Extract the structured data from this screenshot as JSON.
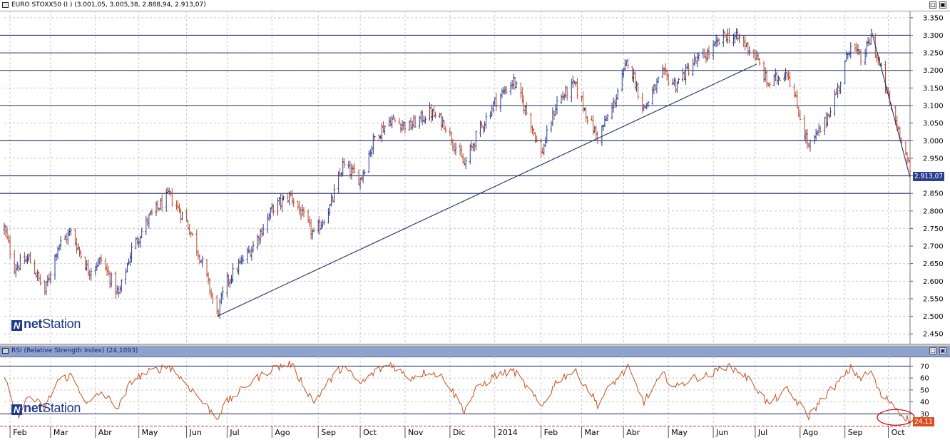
{
  "main_panel": {
    "title": "EURO STOXX50 (I ) (3.001,05, 3.005,38, 2.888,94, 2.913,07)",
    "last_value_label": "2.913,07",
    "logo": {
      "brand_bold": "net",
      "brand_rest": "Station"
    }
  },
  "rsi_panel": {
    "title": "RSI (Relative Strength Index) (24,1093)",
    "last_value_label": "24,11",
    "logo": {
      "brand_bold": "net",
      "brand_rest": "Station"
    }
  },
  "window_buttons": {
    "restore": "□",
    "maximize": "▣"
  },
  "colors": {
    "up_bar": "#2b3a8c",
    "down_bar": "#b8482a",
    "rsi_line": "#c8501e",
    "price_badge": "#2a3f8f",
    "rsi_badge": "#d8501e",
    "circle": "#d00000"
  },
  "chart_data": [
    {
      "type": "ohlc",
      "series_name": "EURO STOXX50",
      "last": 2913.07,
      "y_ticks": [
        "3.350",
        "3.300",
        "3.250",
        "3.200",
        "3.150",
        "3.100",
        "3.050",
        "3.000",
        "2.950",
        "2.900",
        "2.850",
        "2.800",
        "2.750",
        "2.700",
        "2.650",
        "2.600",
        "2.550",
        "2.500",
        "2.450"
      ],
      "ylim": [
        2420,
        3370
      ],
      "horizontal_levels": [
        3300,
        3250,
        3200,
        3100,
        3000,
        2900,
        2850
      ],
      "trendlines": [
        {
          "from": [
            "2013-06-24",
            2500
          ],
          "to": [
            "2014-07-02",
            3218
          ]
        },
        {
          "from": [
            "2014-09-19",
            3318
          ],
          "to": [
            "2014-10-16",
            2895
          ]
        }
      ],
      "anchors": [
        [
          "2013-01-28",
          2750
        ],
        [
          "2013-02-04",
          2640
        ],
        [
          "2013-02-14",
          2665
        ],
        [
          "2013-02-25",
          2570
        ],
        [
          "2013-03-06",
          2700
        ],
        [
          "2013-03-15",
          2740
        ],
        [
          "2013-03-27",
          2630
        ],
        [
          "2013-04-05",
          2660
        ],
        [
          "2013-04-17",
          2560
        ],
        [
          "2013-04-26",
          2690
        ],
        [
          "2013-05-08",
          2780
        ],
        [
          "2013-05-22",
          2845
        ],
        [
          "2013-06-03",
          2770
        ],
        [
          "2013-06-14",
          2650
        ],
        [
          "2013-06-24",
          2505
        ],
        [
          "2013-07-01",
          2600
        ],
        [
          "2013-07-19",
          2700
        ],
        [
          "2013-08-02",
          2810
        ],
        [
          "2013-08-14",
          2845
        ],
        [
          "2013-08-30",
          2730
        ],
        [
          "2013-09-10",
          2810
        ],
        [
          "2013-09-19",
          2930
        ],
        [
          "2013-10-01",
          2890
        ],
        [
          "2013-10-11",
          3010
        ],
        [
          "2013-10-22",
          3060
        ],
        [
          "2013-11-04",
          3040
        ],
        [
          "2013-11-18",
          3080
        ],
        [
          "2013-11-28",
          3050
        ],
        [
          "2013-12-12",
          2930
        ],
        [
          "2013-12-20",
          3010
        ],
        [
          "2014-01-02",
          3110
        ],
        [
          "2014-01-15",
          3170
        ],
        [
          "2014-01-27",
          3050
        ],
        [
          "2014-02-03",
          2960
        ],
        [
          "2014-02-14",
          3110
        ],
        [
          "2014-02-26",
          3160
        ],
        [
          "2014-03-07",
          3070
        ],
        [
          "2014-03-14",
          3010
        ],
        [
          "2014-03-24",
          3090
        ],
        [
          "2014-04-04",
          3230
        ],
        [
          "2014-04-15",
          3090
        ],
        [
          "2014-04-28",
          3190
        ],
        [
          "2014-05-07",
          3160
        ],
        [
          "2014-05-19",
          3220
        ],
        [
          "2014-05-30",
          3250
        ],
        [
          "2014-06-10",
          3300
        ],
        [
          "2014-06-20",
          3290
        ],
        [
          "2014-06-30",
          3250
        ],
        [
          "2014-07-10",
          3160
        ],
        [
          "2014-07-23",
          3200
        ],
        [
          "2014-08-07",
          2980
        ],
        [
          "2014-08-18",
          3050
        ],
        [
          "2014-08-29",
          3170
        ],
        [
          "2014-09-05",
          3280
        ],
        [
          "2014-09-12",
          3230
        ],
        [
          "2014-09-19",
          3290
        ],
        [
          "2014-09-26",
          3200
        ],
        [
          "2014-10-03",
          3090
        ],
        [
          "2014-10-10",
          3010
        ],
        [
          "2014-10-16",
          2913
        ]
      ]
    },
    {
      "type": "line",
      "series_name": "RSI",
      "last": 24.11,
      "y_ticks": [
        "70",
        "60",
        "50",
        "40",
        "30"
      ],
      "ylim": [
        20,
        78
      ],
      "horizontal_levels": [
        70,
        30
      ],
      "anchors": [
        [
          "2013-01-28",
          60
        ],
        [
          "2013-02-06",
          28
        ],
        [
          "2013-02-14",
          45
        ],
        [
          "2013-02-25",
          35
        ],
        [
          "2013-03-06",
          58
        ],
        [
          "2013-03-15",
          62
        ],
        [
          "2013-03-27",
          38
        ],
        [
          "2013-04-05",
          48
        ],
        [
          "2013-04-17",
          35
        ],
        [
          "2013-04-26",
          58
        ],
        [
          "2013-05-08",
          65
        ],
        [
          "2013-05-22",
          70
        ],
        [
          "2013-06-03",
          55
        ],
        [
          "2013-06-14",
          40
        ],
        [
          "2013-06-24",
          27
        ],
        [
          "2013-07-01",
          40
        ],
        [
          "2013-07-19",
          58
        ],
        [
          "2013-08-02",
          68
        ],
        [
          "2013-08-14",
          72
        ],
        [
          "2013-08-30",
          40
        ],
        [
          "2013-09-10",
          58
        ],
        [
          "2013-09-19",
          70
        ],
        [
          "2013-10-01",
          55
        ],
        [
          "2013-10-11",
          65
        ],
        [
          "2013-10-22",
          72
        ],
        [
          "2013-11-04",
          60
        ],
        [
          "2013-11-18",
          66
        ],
        [
          "2013-11-28",
          60
        ],
        [
          "2013-12-12",
          33
        ],
        [
          "2013-12-20",
          50
        ],
        [
          "2014-01-02",
          62
        ],
        [
          "2014-01-15",
          66
        ],
        [
          "2014-01-27",
          48
        ],
        [
          "2014-02-03",
          35
        ],
        [
          "2014-02-14",
          58
        ],
        [
          "2014-02-26",
          66
        ],
        [
          "2014-03-07",
          52
        ],
        [
          "2014-03-14",
          38
        ],
        [
          "2014-03-24",
          55
        ],
        [
          "2014-04-04",
          68
        ],
        [
          "2014-04-15",
          40
        ],
        [
          "2014-04-28",
          63
        ],
        [
          "2014-05-07",
          52
        ],
        [
          "2014-05-19",
          60
        ],
        [
          "2014-05-30",
          62
        ],
        [
          "2014-06-10",
          70
        ],
        [
          "2014-06-20",
          66
        ],
        [
          "2014-06-30",
          55
        ],
        [
          "2014-07-10",
          38
        ],
        [
          "2014-07-23",
          50
        ],
        [
          "2014-08-07",
          28
        ],
        [
          "2014-08-18",
          45
        ],
        [
          "2014-08-29",
          58
        ],
        [
          "2014-09-05",
          68
        ],
        [
          "2014-09-12",
          60
        ],
        [
          "2014-09-19",
          65
        ],
        [
          "2014-09-26",
          45
        ],
        [
          "2014-10-03",
          40
        ],
        [
          "2014-10-10",
          30
        ],
        [
          "2014-10-16",
          24.11
        ]
      ]
    }
  ],
  "x_axis": {
    "start_date": "2013-01-28",
    "end_date": "2014-10-16",
    "months": [
      {
        "label": "Feb",
        "date": "2013-02-01"
      },
      {
        "label": "Mar",
        "date": "2013-03-01"
      },
      {
        "label": "Abr",
        "date": "2013-04-01"
      },
      {
        "label": "May",
        "date": "2013-05-01"
      },
      {
        "label": "Jun",
        "date": "2013-06-03"
      },
      {
        "label": "Jul",
        "date": "2013-07-01"
      },
      {
        "label": "Ago",
        "date": "2013-08-01"
      },
      {
        "label": "Sep",
        "date": "2013-09-02"
      },
      {
        "label": "Oct",
        "date": "2013-10-01"
      },
      {
        "label": "Nov",
        "date": "2013-11-01"
      },
      {
        "label": "Dic",
        "date": "2013-12-02"
      },
      {
        "label": "2014",
        "date": "2014-01-02"
      },
      {
        "label": "Feb",
        "date": "2014-02-03"
      },
      {
        "label": "Mar",
        "date": "2014-03-03"
      },
      {
        "label": "Abr",
        "date": "2014-04-01"
      },
      {
        "label": "May",
        "date": "2014-05-02"
      },
      {
        "label": "Jun",
        "date": "2014-06-02"
      },
      {
        "label": "Jul",
        "date": "2014-07-01"
      },
      {
        "label": "Ago",
        "date": "2014-08-01"
      },
      {
        "label": "Sep",
        "date": "2014-09-01"
      },
      {
        "label": "Oct",
        "date": "2014-10-01"
      }
    ]
  }
}
